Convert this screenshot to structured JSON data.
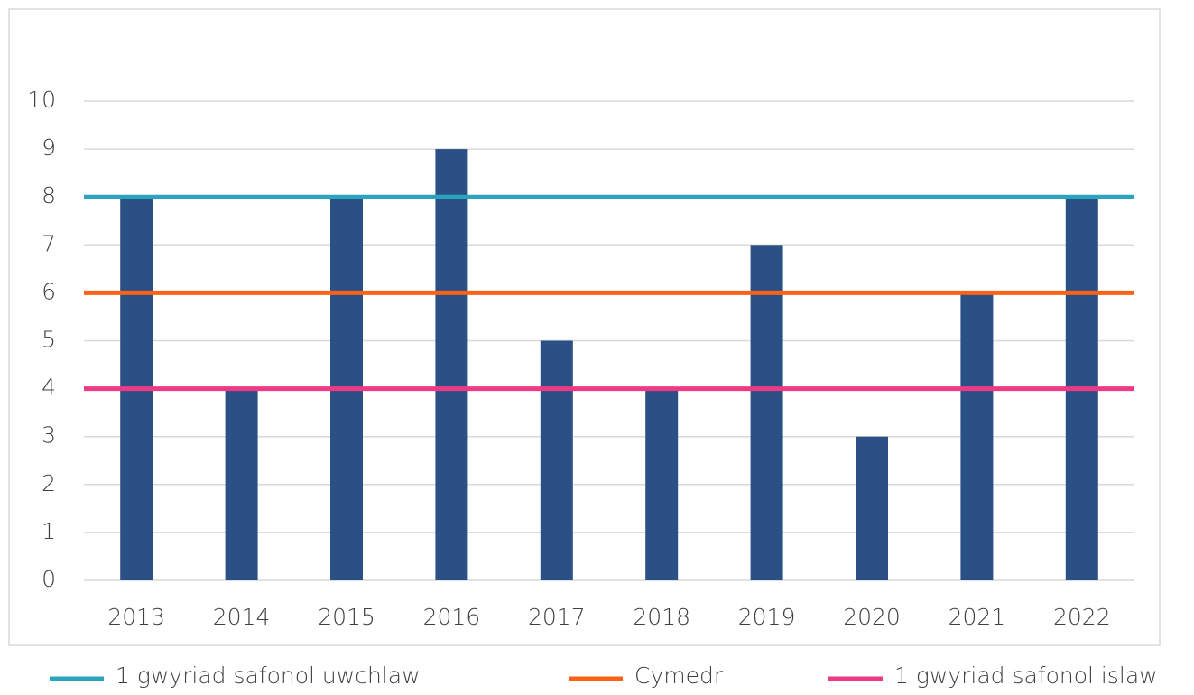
{
  "chart_data": {
    "type": "bar",
    "categories": [
      "2013",
      "2014",
      "2015",
      "2016",
      "2017",
      "2018",
      "2019",
      "2020",
      "2021",
      "2022"
    ],
    "values": [
      8,
      4,
      8,
      9,
      5,
      4,
      7,
      3,
      6,
      8
    ],
    "color": "#2a5085",
    "series": [
      {
        "name": "1 gwyriad safonol uwchlaw",
        "color": "#2ba5bd",
        "values": [
          8,
          8,
          8,
          8,
          8,
          8,
          8,
          8,
          8,
          8
        ]
      },
      {
        "name": "Cymedr",
        "color": "#fb6316",
        "values": [
          6,
          6,
          6,
          6,
          6,
          6,
          6,
          6,
          6,
          6
        ]
      },
      {
        "name": "1 gwyriad safonol islaw",
        "color": "#ee3a84",
        "values": [
          4,
          4,
          4,
          4,
          4,
          4,
          4,
          4,
          4,
          4
        ]
      }
    ],
    "ylim": [
      0,
      10
    ],
    "yticks": [
      0,
      1,
      2,
      3,
      4,
      5,
      6,
      7,
      8,
      9,
      10
    ],
    "grid": true,
    "legend": "bottom"
  }
}
